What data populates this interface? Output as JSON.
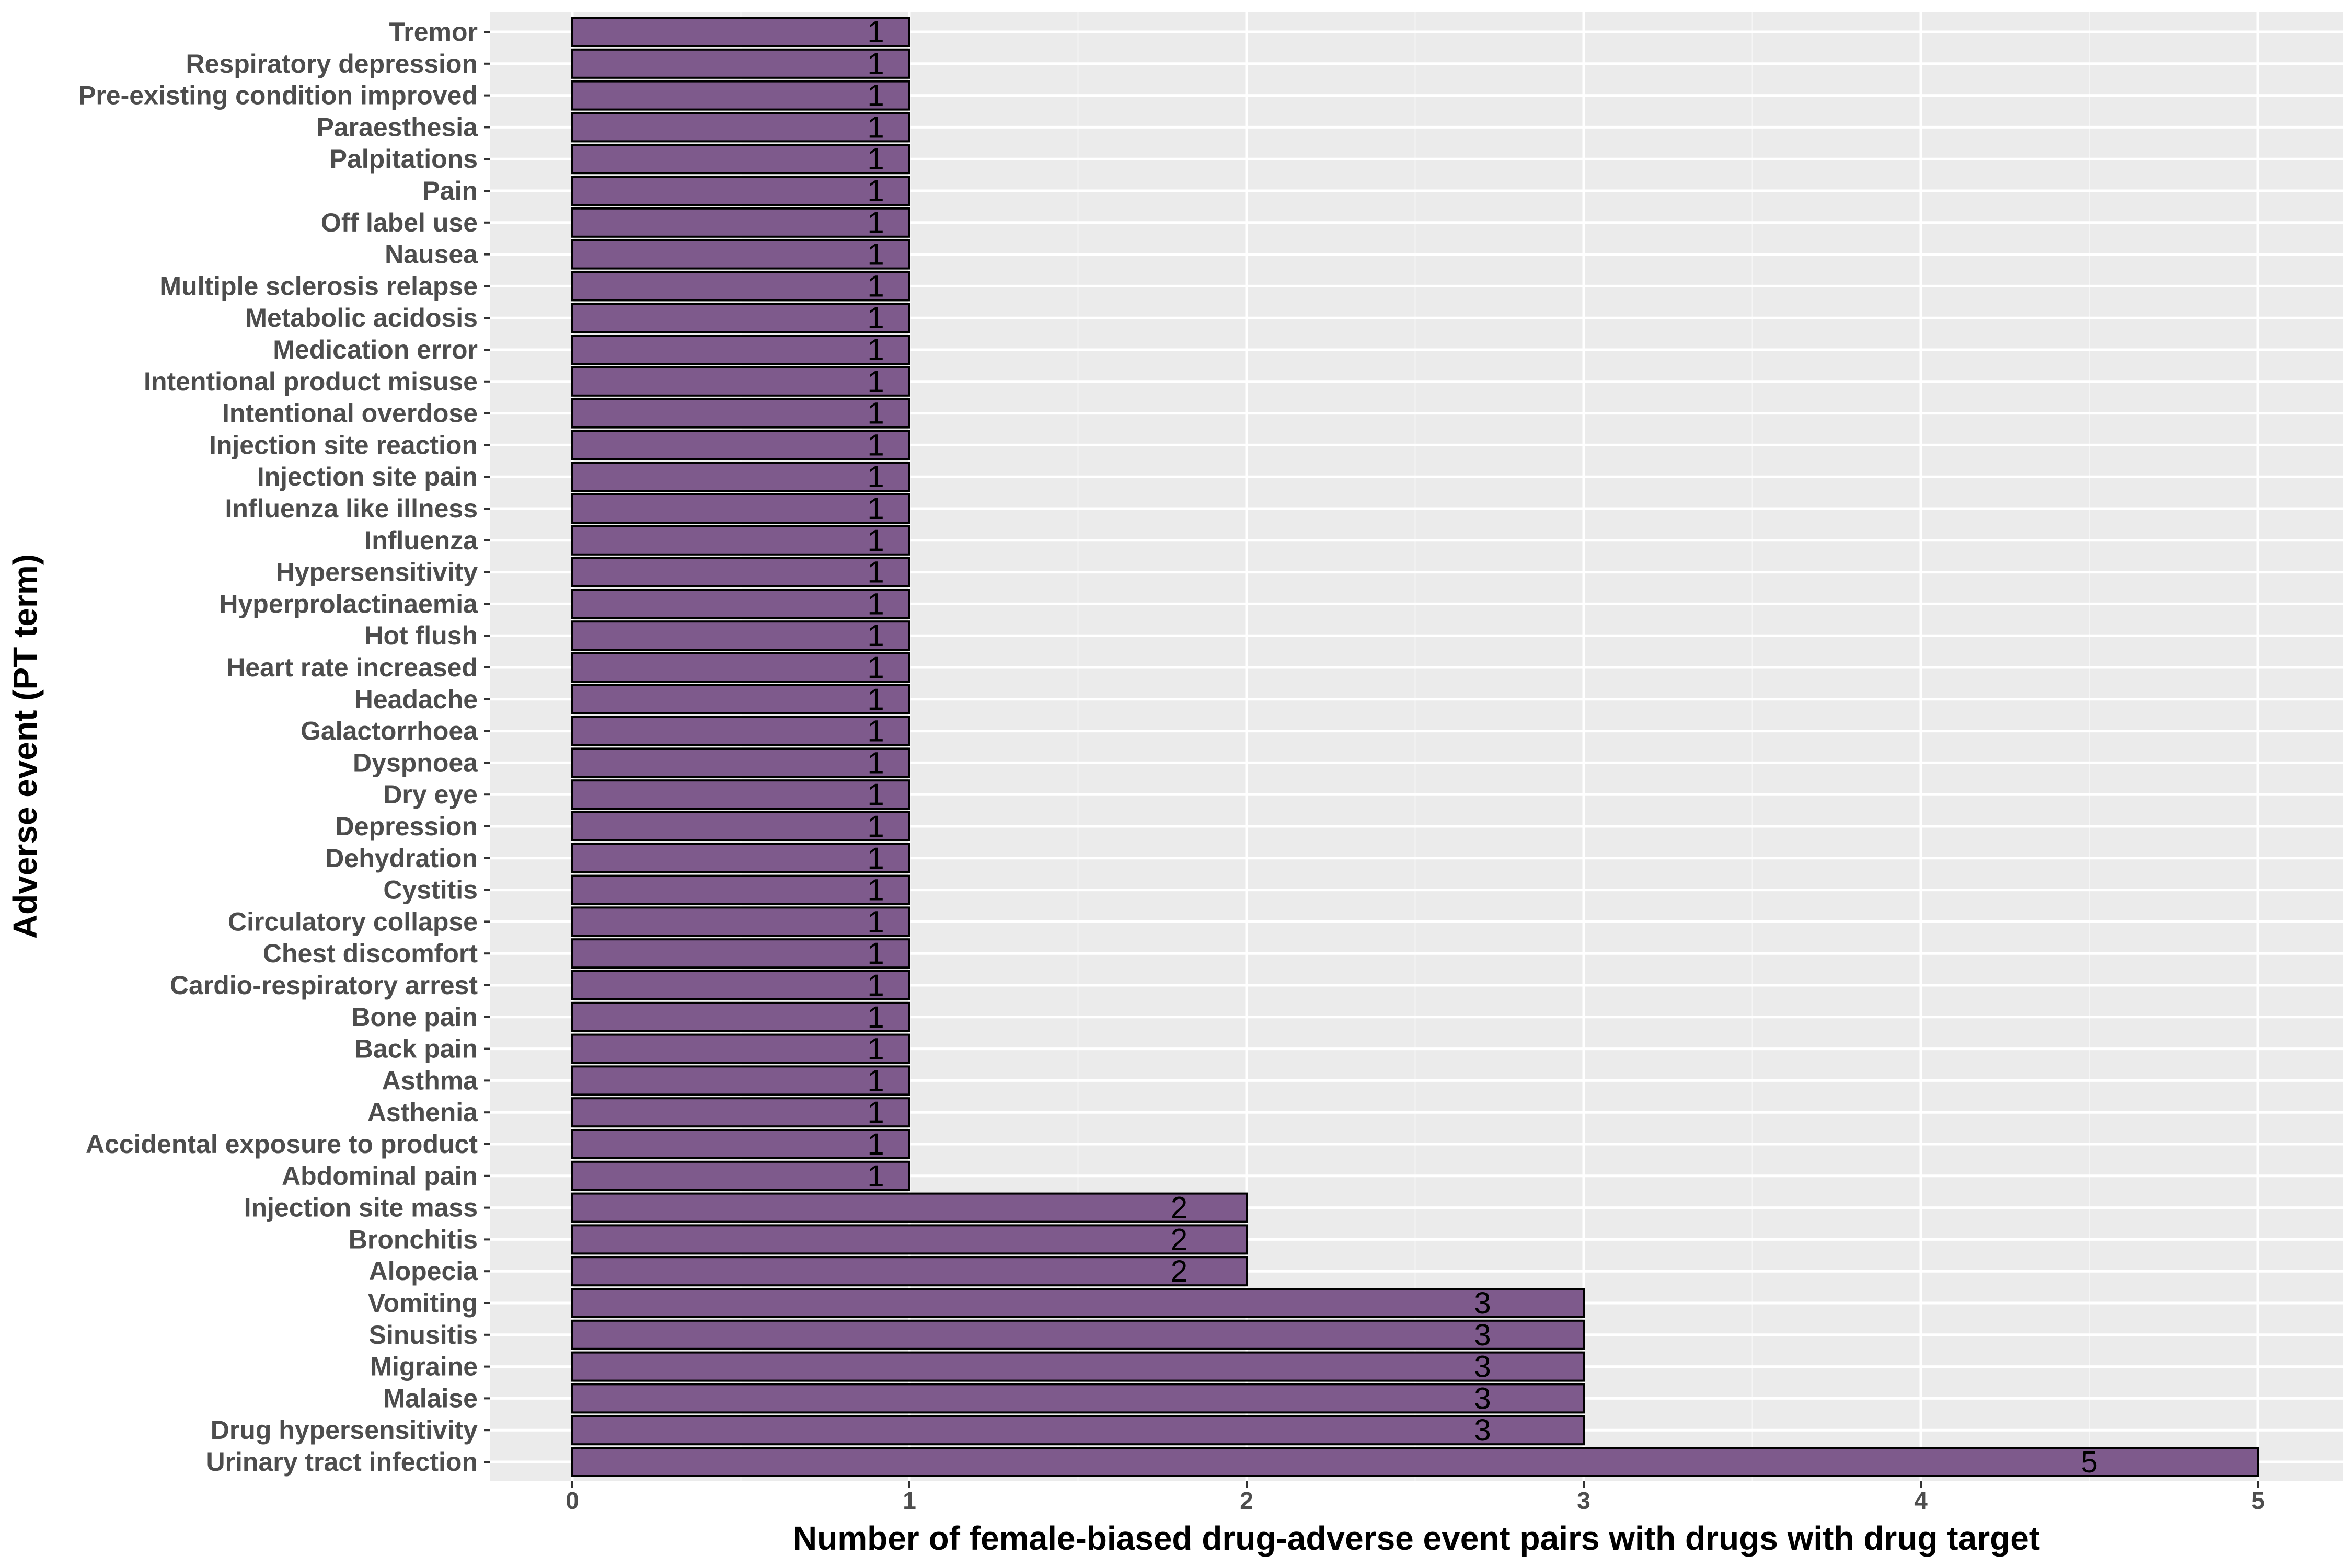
{
  "chart_data": {
    "type": "bar",
    "orientation": "horizontal",
    "xlabel": "Number of female-biased drug-adverse event pairs with drugs with drug target",
    "ylabel": "Adverse event (PT term)",
    "xlim": [
      -0.25,
      5.25
    ],
    "xticks": [
      0,
      1,
      2,
      3,
      4,
      5
    ],
    "grid": true,
    "bar_color": "#7e5a8c",
    "bar_border_color": "#000000",
    "panel_background": "#ebebeb",
    "categories": [
      "Tremor",
      "Respiratory depression",
      "Pre-existing condition improved",
      "Paraesthesia",
      "Palpitations",
      "Pain",
      "Off label use",
      "Nausea",
      "Multiple sclerosis relapse",
      "Metabolic acidosis",
      "Medication error",
      "Intentional product misuse",
      "Intentional overdose",
      "Injection site reaction",
      "Injection site pain",
      "Influenza like illness",
      "Influenza",
      "Hypersensitivity",
      "Hyperprolactinaemia",
      "Hot flush",
      "Heart rate increased",
      "Headache",
      "Galactorrhoea",
      "Dyspnoea",
      "Dry eye",
      "Depression",
      "Dehydration",
      "Cystitis",
      "Circulatory collapse",
      "Chest discomfort",
      "Cardio-respiratory arrest",
      "Bone pain",
      "Back pain",
      "Asthma",
      "Asthenia",
      "Accidental exposure to product",
      "Abdominal pain",
      "Injection site mass",
      "Bronchitis",
      "Alopecia",
      "Vomiting",
      "Sinusitis",
      "Migraine",
      "Malaise",
      "Drug hypersensitivity",
      "Urinary tract infection"
    ],
    "values": [
      1,
      1,
      1,
      1,
      1,
      1,
      1,
      1,
      1,
      1,
      1,
      1,
      1,
      1,
      1,
      1,
      1,
      1,
      1,
      1,
      1,
      1,
      1,
      1,
      1,
      1,
      1,
      1,
      1,
      1,
      1,
      1,
      1,
      1,
      1,
      1,
      1,
      2,
      2,
      2,
      3,
      3,
      3,
      3,
      3,
      5
    ]
  }
}
